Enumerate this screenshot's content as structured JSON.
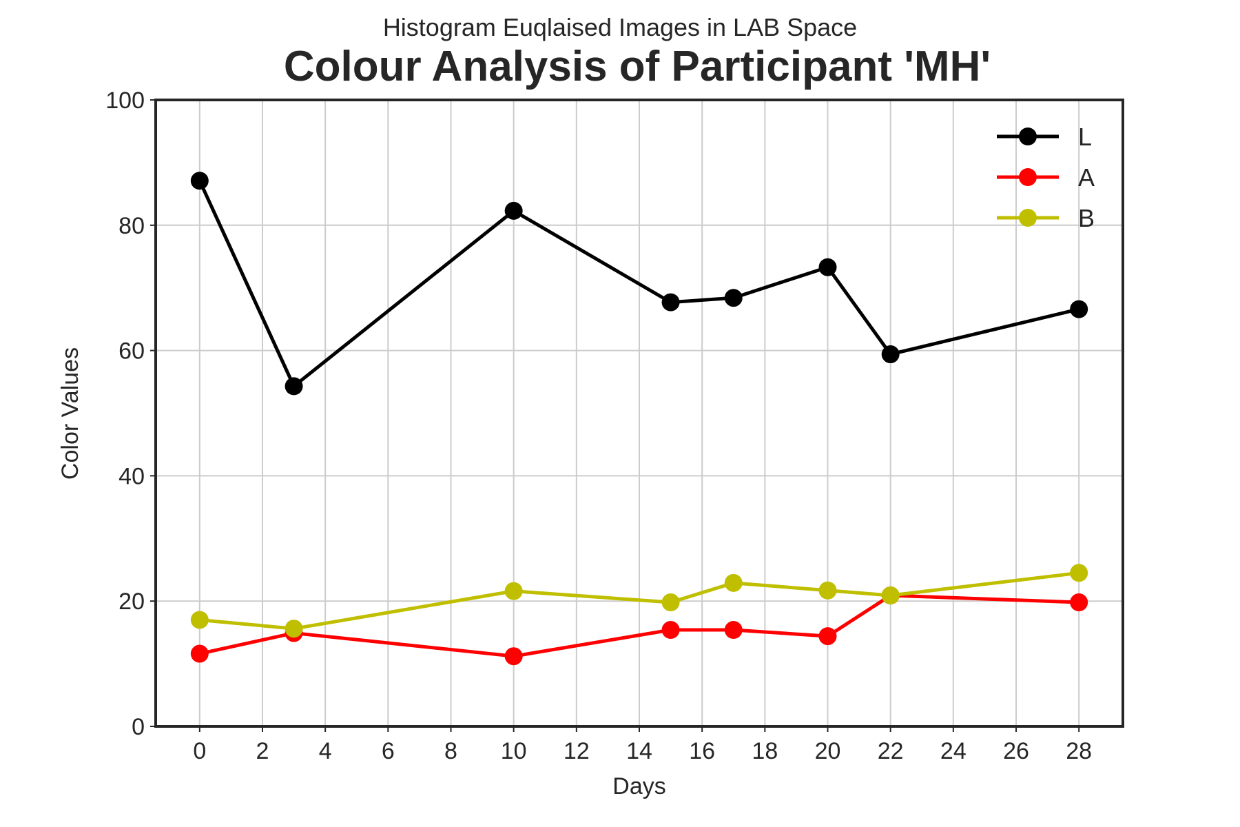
{
  "chart_data": {
    "type": "line",
    "subtitle": "Histogram Euqlaised Images in LAB Space",
    "title": "Colour Analysis of Participant 'MH'",
    "xlabel": "Days",
    "ylabel": "Color Values",
    "xlim": [
      -1.4,
      29.4
    ],
    "ylim": [
      0,
      100
    ],
    "xticks": [
      0,
      2,
      4,
      6,
      8,
      10,
      12,
      14,
      16,
      18,
      20,
      22,
      24,
      26,
      28
    ],
    "yticks": [
      0,
      20,
      40,
      60,
      80,
      100
    ],
    "grid": true,
    "legend_position": "top-right",
    "x": [
      0,
      3,
      10,
      15,
      17,
      20,
      22,
      28
    ],
    "series": [
      {
        "name": "L",
        "color": "#000000",
        "values": [
          87.1,
          54.3,
          82.3,
          67.7,
          68.4,
          73.3,
          59.4,
          66.6
        ]
      },
      {
        "name": "A",
        "color": "#ff0000",
        "values": [
          11.6,
          14.9,
          11.2,
          15.4,
          15.4,
          14.4,
          20.9,
          19.8
        ]
      },
      {
        "name": "B",
        "color": "#bfbf00",
        "values": [
          17.0,
          15.6,
          21.6,
          19.8,
          22.9,
          21.7,
          20.9,
          24.5
        ]
      }
    ]
  }
}
